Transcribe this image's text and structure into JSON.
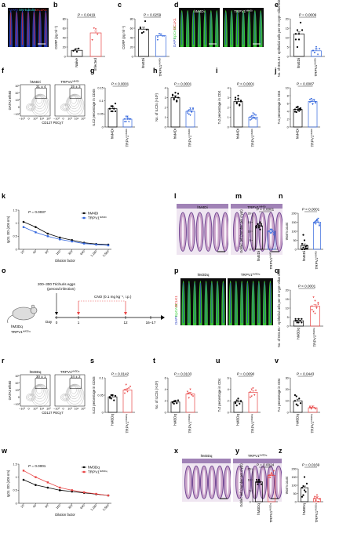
{
  "figure": {
    "panel_letters": [
      "a",
      "b",
      "c",
      "d",
      "e",
      "f",
      "g",
      "h",
      "i",
      "j",
      "k",
      "l",
      "m",
      "n",
      "o",
      "p",
      "q",
      "r",
      "s",
      "t",
      "u",
      "v",
      "w",
      "x",
      "y",
      "z"
    ]
  },
  "colors": {
    "black": "#000000",
    "blue": "#3366dd",
    "red": "#e84545",
    "dapi": "#2a3fc0",
    "epcam": "#3bd13b",
    "dclk1": "#e02a2a",
    "sn": "#38d5d5",
    "he_pink": "#c9a3c9",
    "he_purple": "#6a3f8f"
  },
  "images": {
    "a": {
      "labels": [
        "DAPI",
        "SN-tubulin",
        "DCLK1"
      ]
    },
    "d": {
      "left": "hM4Di",
      "right": "TRPV1",
      "right_sup": "hM4Di",
      "labels": [
        "DAPI",
        "EpCAM",
        "DCLK1"
      ]
    },
    "l": {
      "left": "hM4Di",
      "right": "TRPV1",
      "right_sup": "hM4Di"
    },
    "p": {
      "left": "hM3Dq",
      "right": "TRPV1",
      "right_sup": "hM3Dq",
      "labels": [
        "DAPI",
        "EpCAM",
        "DCLK1"
      ]
    },
    "x": {
      "left": "hM3Dq",
      "right": "TRPV1",
      "right_sup": "hM3Dq"
    }
  },
  "flow": {
    "f": {
      "left_title": "hM4Di",
      "right_title": "TRPV1",
      "right_sup": "hM4Di",
      "left_gate": "31 ± 4",
      "right_gate": "15 ± 3",
      "ylabel": "GATA3 ef660",
      "xlabel": "CD127 PECy7",
      "ticks": [
        "−10³",
        "0",
        "10³",
        "10⁴",
        "10⁵"
      ]
    },
    "r": {
      "left_title": "hM3Dq",
      "right_title": "TRPV1",
      "right_sup": "hM3Dq",
      "left_gate": "30 ± 1",
      "right_gate": "34 ± 2",
      "ylabel": "GATA3 ef660",
      "xlabel": "CD127 PECy7",
      "ticks": [
        "−10³",
        "0",
        "10³",
        "10⁴",
        "10⁵"
      ]
    }
  },
  "schematic": {
    "eggs": "200–300 Trichuris eggs",
    "route": "(peroral infection)",
    "cno": "CNO (0.1 mg kg⁻¹, i.p.)",
    "mouse1": "hM3Dq",
    "mouse2": "TRPV1",
    "mouse2_sup": "hM3Dq",
    "day": "Day",
    "days": [
      "0",
      "1",
      "12",
      "16–17"
    ]
  },
  "chart_data": [
    {
      "panel": "b",
      "type": "bar",
      "categories": [
        "Naive",
        "Infected"
      ],
      "values": [
        13,
        50
      ],
      "points": [
        [
          12,
          15,
          10,
          17
        ],
        [
          35,
          60,
          58,
          47
        ]
      ],
      "ylabel": "CGRP (pg ml⁻¹)",
      "yticks": [
        0,
        20,
        40,
        60,
        80
      ],
      "ylim": [
        0,
        80
      ],
      "p": "P = 0.0419",
      "colors": [
        "#000000",
        "#e84545"
      ]
    },
    {
      "panel": "c",
      "type": "bar",
      "categories": [
        "hM4Di",
        "TRPV1"
      ],
      "sup": [
        "",
        "hM4Di"
      ],
      "values": [
        58,
        44
      ],
      "points": [
        [
          60,
          50,
          52,
          75,
          57,
          62
        ],
        [
          35,
          48,
          47,
          43,
          43,
          41
        ]
      ],
      "ylabel": "CGRP (pg ml⁻¹)",
      "yticks": [
        0,
        20,
        40,
        60,
        80
      ],
      "ylim": [
        0,
        80
      ],
      "p": "P = 0.0259",
      "colors": [
        "#000000",
        "#3366dd"
      ]
    },
    {
      "panel": "e",
      "type": "bar",
      "categories": [
        "hM4Di",
        "TRPV1"
      ],
      "sup": [
        "",
        "hM4Di"
      ],
      "values": [
        12,
        3
      ],
      "points": [
        [
          12,
          14,
          9,
          18,
          14,
          9,
          5,
          12
        ],
        [
          3,
          2,
          5,
          1,
          4,
          3,
          2,
          4
        ]
      ],
      "ylabel": "No. of DCLK1⁺ epithelial cells per 20 crypt–villus units",
      "yticks": [
        0,
        5,
        10,
        15,
        20
      ],
      "ylim": [
        0,
        20
      ],
      "p": "P = 0.0009",
      "colors": [
        "#000000",
        "#3366dd"
      ]
    },
    {
      "panel": "g",
      "type": "bar",
      "categories": [
        "hM4Di",
        "TRPV1"
      ],
      "sup": [
        "",
        "hM4Di"
      ],
      "values": [
        0.07,
        0.03
      ],
      "points": [
        [
          0.07,
          0.08,
          0.06,
          0.07,
          0.09,
          0.07,
          0.06,
          0.08,
          0.07,
          0.06
        ],
        [
          0.03,
          0.02,
          0.04,
          0.03,
          0.03,
          0.02,
          0.04,
          0.03,
          0.02,
          0.03
        ]
      ],
      "ylabel": "ILC2 percentage in CD45",
      "yticks": [
        0,
        0.05,
        0.1,
        0.15
      ],
      "ylim": [
        0,
        0.15
      ],
      "p": "P < 0.0001",
      "colors": [
        "#000000",
        "#3366dd"
      ]
    },
    {
      "panel": "h",
      "type": "bar",
      "categories": [
        "hM4Di",
        "TRPV1"
      ],
      "sup": [
        "",
        "hM4Di"
      ],
      "values": [
        3.0,
        1.6
      ],
      "points": [
        [
          3.2,
          2.8,
          3.5,
          2.6,
          3.0,
          3.3,
          2.9,
          3.1,
          2.7,
          3.4
        ],
        [
          1.6,
          1.3,
          1.9,
          1.5,
          1.8,
          1.4,
          1.7,
          1.2,
          1.6,
          1.9
        ]
      ],
      "ylabel": "No. of ILC2s (×10³)",
      "yticks": [
        0,
        1,
        2,
        3,
        4
      ],
      "ylim": [
        0,
        4
      ],
      "p": "P = 0.0001",
      "colors": [
        "#000000",
        "#3366dd"
      ]
    },
    {
      "panel": "i",
      "type": "bar",
      "categories": [
        "hM4Di",
        "TRPV1"
      ],
      "sup": [
        "",
        "hM4Di"
      ],
      "values": [
        2.6,
        1.0
      ],
      "points": [
        [
          2.8,
          2.4,
          3.2,
          2.2,
          2.7,
          3.0,
          2.5,
          2.9,
          2.3,
          2.6
        ],
        [
          1.0,
          0.8,
          1.4,
          0.9,
          1.2,
          0.7,
          1.1,
          0.9,
          1.3,
          0.8
        ]
      ],
      "ylabel": "Tₕ2 percentage in CD4",
      "yticks": [
        0,
        1,
        2,
        3,
        4
      ],
      "ylim": [
        0,
        4
      ],
      "p": "P < 0.0001",
      "colors": [
        "#000000",
        "#3366dd"
      ]
    },
    {
      "panel": "j",
      "type": "bar",
      "categories": [
        "hM4Di",
        "TRPV1"
      ],
      "sup": [
        "",
        "hM4Di"
      ],
      "values": [
        4.5,
        6.5
      ],
      "points": [
        [
          4.5,
          3.8,
          5.2,
          4.1,
          4.8,
          3.9,
          5.0,
          4.3,
          4.6,
          4.4
        ],
        [
          6.3,
          7.2,
          5.8,
          6.9,
          6.1,
          7.0,
          6.5,
          5.9,
          6.8,
          6.4
        ]
      ],
      "ylabel": "Tₕ1 percentage in CD4",
      "yticks": [
        0,
        2,
        4,
        6,
        8,
        10
      ],
      "ylim": [
        0,
        10
      ],
      "p": "P = 0.0087",
      "colors": [
        "#000000",
        "#3366dd"
      ]
    },
    {
      "panel": "k",
      "type": "line",
      "x": [
        "20",
        "40",
        "80",
        "160",
        "320",
        "640",
        "1,280",
        "2,560"
      ],
      "series": [
        {
          "name": "hM4Di",
          "values": [
            1.05,
            0.85,
            0.6,
            0.45,
            0.35,
            0.25,
            0.2,
            0.18
          ]
        },
        {
          "name": "TRPV1",
          "sup": "hM4Di",
          "values": [
            0.85,
            0.65,
            0.5,
            0.38,
            0.3,
            0.22,
            0.18,
            0.15
          ]
        }
      ],
      "xlabel": "Dilution factor",
      "ylabel": "IgG1 OD (405 nm)",
      "yticks": [
        0,
        0.5,
        1.0,
        1.5
      ],
      "ylim": [
        0,
        1.5
      ],
      "p": "P = 0.0037",
      "colors": [
        "#000000",
        "#3366dd"
      ]
    },
    {
      "panel": "m",
      "type": "bar",
      "categories": [
        "hM4Di",
        "TRPV1"
      ],
      "sup": [
        "",
        "hM4Di"
      ],
      "values": [
        13,
        10
      ],
      "points": [
        [
          13,
          14,
          12,
          15,
          13,
          12,
          14,
          13,
          11,
          14
        ],
        [
          10,
          9,
          11,
          10,
          8,
          10,
          11,
          9,
          10,
          9
        ]
      ],
      "ylabel": "Goblet cell (number per crypt)",
      "yticks": [
        0,
        5,
        10,
        15,
        20
      ],
      "ylim": [
        0,
        20
      ],
      "p": "P < 0.0001",
      "colors": [
        "#000000",
        "#3366dd"
      ]
    },
    {
      "panel": "n",
      "type": "bar",
      "categories": [
        "hM4Di",
        "TRPV1"
      ],
      "sup": [
        "",
        "hM4Di"
      ],
      "values": [
        20,
        150
      ],
      "points": [
        [
          0,
          10,
          50,
          5,
          20,
          30,
          80,
          0,
          15,
          5
        ],
        [
          150,
          140,
          160,
          170,
          130,
          145,
          155,
          165,
          150,
          138
        ]
      ],
      "ylabel": "Worm count",
      "yticks": [
        0,
        50,
        100,
        150,
        200
      ],
      "ylim": [
        0,
        200
      ],
      "p": "P < 0.0001",
      "colors": [
        "#000000",
        "#3366dd"
      ]
    },
    {
      "panel": "q",
      "type": "bar",
      "categories": [
        "hM3Dq",
        "TRPV1"
      ],
      "sup": [
        "",
        "hM3Dq"
      ],
      "values": [
        3,
        11
      ],
      "points": [
        [
          3,
          2,
          4,
          3,
          2,
          4,
          3,
          2,
          3,
          4
        ],
        [
          11,
          8,
          14,
          10,
          12,
          9,
          16,
          7,
          11,
          13
        ]
      ],
      "ylabel": "No. of DCLK1⁺ epithelial cells per 20 crypt–villus units",
      "yticks": [
        0,
        5,
        10,
        15,
        20
      ],
      "ylim": [
        0,
        20
      ],
      "p": "P < 0.0001",
      "colors": [
        "#000000",
        "#e84545"
      ]
    },
    {
      "panel": "s",
      "type": "bar",
      "categories": [
        "hM3Dq",
        "TRPV1"
      ],
      "sup": [
        "",
        "hM3Dq"
      ],
      "values": [
        0.045,
        0.065
      ],
      "points": [
        [
          0.045,
          0.04,
          0.05,
          0.035,
          0.048,
          0.042,
          0.05
        ],
        [
          0.065,
          0.08,
          0.06,
          0.07,
          0.075,
          0.055,
          0.065
        ]
      ],
      "ylabel": "ILC2 percentage in CD45",
      "yticks": [
        0,
        0.05,
        0.1
      ],
      "ylim": [
        0,
        0.1
      ],
      "p": "P = 0.0142",
      "colors": [
        "#000000",
        "#e84545"
      ]
    },
    {
      "panel": "t",
      "type": "bar",
      "categories": [
        "hM3Dq",
        "TRPV1"
      ],
      "sup": [
        "",
        "hM3Dq"
      ],
      "values": [
        1.8,
        3.2
      ],
      "points": [
        [
          1.8,
          1.5,
          2.0,
          1.6,
          2.1,
          1.7,
          1.9
        ],
        [
          3.2,
          2.5,
          4.0,
          3.0,
          2.8,
          3.6,
          3.3
        ]
      ],
      "ylabel": "No. of ILC2s (×10³)",
      "yticks": [
        0,
        2,
        4,
        6
      ],
      "ylim": [
        0,
        6
      ],
      "p": "P = 0.0103",
      "colors": [
        "#000000",
        "#e84545"
      ]
    },
    {
      "panel": "u",
      "type": "bar",
      "categories": [
        "hM3Dq",
        "TRPV1"
      ],
      "sup": [
        "",
        "hM3Dq"
      ],
      "values": [
        1.8,
        3.5
      ],
      "points": [
        [
          1.8,
          1.2,
          2.4,
          1.5,
          2.0,
          1.6,
          2.1
        ],
        [
          3.5,
          2.8,
          4.2,
          3.0,
          3.8,
          2.6,
          4.0
        ]
      ],
      "ylabel": "Tₕ2 percentage in CD4",
      "yticks": [
        0,
        2,
        4,
        6
      ],
      "ylim": [
        0,
        6
      ],
      "p": "P = 0.0090",
      "colors": [
        "#000000",
        "#e84545"
      ]
    },
    {
      "panel": "v",
      "type": "bar",
      "categories": [
        "hM3Dq",
        "TRPV1"
      ],
      "sup": [
        "",
        "hM3Dq"
      ],
      "values": [
        10,
        4
      ],
      "points": [
        [
          10,
          14,
          6,
          12,
          8,
          15,
          7
        ],
        [
          4,
          3,
          5,
          4,
          3,
          5,
          4
        ]
      ],
      "ylabel": "Tₕ1 percentage in CD4",
      "yticks": [
        0,
        10,
        20,
        30
      ],
      "ylim": [
        0,
        30
      ],
      "p": "P = 0.0443",
      "colors": [
        "#000000",
        "#e84545"
      ]
    },
    {
      "panel": "w",
      "type": "line",
      "x": [
        "20",
        "40",
        "80",
        "160",
        "320",
        "640",
        "1,280",
        "2,560"
      ],
      "series": [
        {
          "name": "hM3Dq",
          "values": [
            0.9,
            0.7,
            0.6,
            0.5,
            0.45,
            0.4,
            0.35,
            0.3
          ]
        },
        {
          "name": "TRPV1",
          "sup": "hM3Dq",
          "values": [
            1.25,
            1.0,
            0.8,
            0.6,
            0.5,
            0.42,
            0.36,
            0.3
          ]
        }
      ],
      "xlabel": "Dilution factor",
      "ylabel": "IgG1 OD (405 nm)",
      "yticks": [
        0,
        0.5,
        1.0,
        1.5
      ],
      "ylim": [
        0,
        1.5
      ],
      "p": "P = 0.0001",
      "colors": [
        "#000000",
        "#e84545"
      ]
    },
    {
      "panel": "y",
      "type": "bar",
      "categories": [
        "hM3Dq",
        "TRPV1"
      ],
      "sup": [
        "",
        "hM3Dq"
      ],
      "values": [
        9,
        12
      ],
      "points": [
        [
          9,
          8,
          10,
          9,
          8,
          10,
          9,
          9
        ],
        [
          12,
          11,
          13,
          12,
          14,
          11,
          12,
          13
        ]
      ],
      "ylabel": "Goblet cell (number per crypt)",
      "yticks": [
        0,
        5,
        10,
        15
      ],
      "ylim": [
        0,
        15
      ],
      "p": "P = 0.0024",
      "colors": [
        "#000000",
        "#e84545"
      ]
    },
    {
      "panel": "z",
      "type": "bar",
      "categories": [
        "hM3Dq",
        "TRPV1"
      ],
      "sup": [
        "",
        "hM3Dq"
      ],
      "values": [
        85,
        20
      ],
      "points": [
        [
          85,
          40,
          150,
          60,
          110,
          30,
          95,
          70
        ],
        [
          20,
          5,
          40,
          0,
          15,
          30,
          10,
          25
        ]
      ],
      "ylabel": "Worm count",
      "yticks": [
        0,
        50,
        100,
        150,
        200
      ],
      "ylim": [
        0,
        200
      ],
      "p": "P = 0.0169",
      "colors": [
        "#000000",
        "#e84545"
      ]
    }
  ]
}
